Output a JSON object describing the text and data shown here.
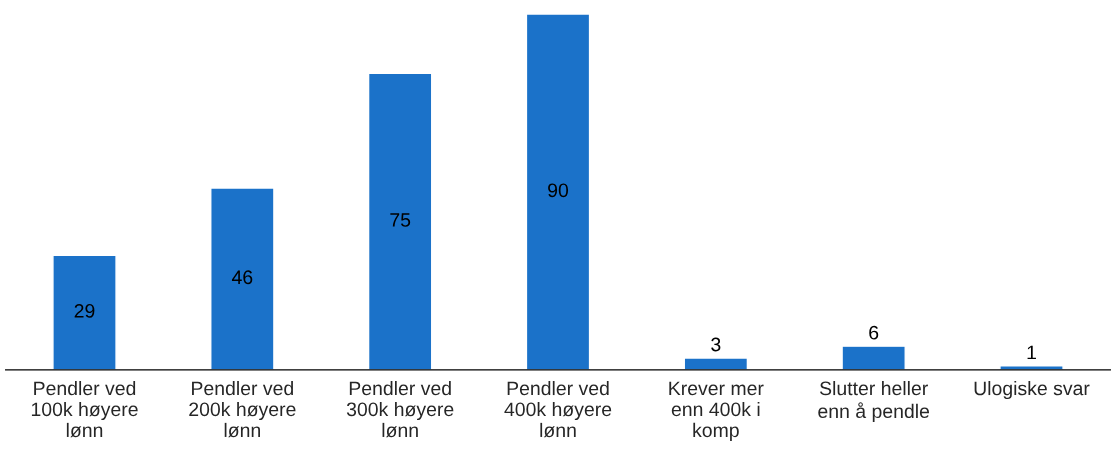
{
  "chart_data": {
    "type": "bar",
    "categories": [
      "Pendler ved\n100k høyere\nlønn",
      "Pendler ved\n200k høyere\nlønn",
      "Pendler ved\n300k høyere\nlønn",
      "Pendler ved\n400k høyere\nlønn",
      "Krever mer\nenn 400k i\nkomp",
      "Slutter heller\nenn å pendle",
      "Ulogiske svar"
    ],
    "values": [
      29,
      46,
      75,
      90,
      3,
      6,
      1
    ],
    "color": "#1b72c9",
    "data_labels": true,
    "grid": false,
    "legend": false
  }
}
